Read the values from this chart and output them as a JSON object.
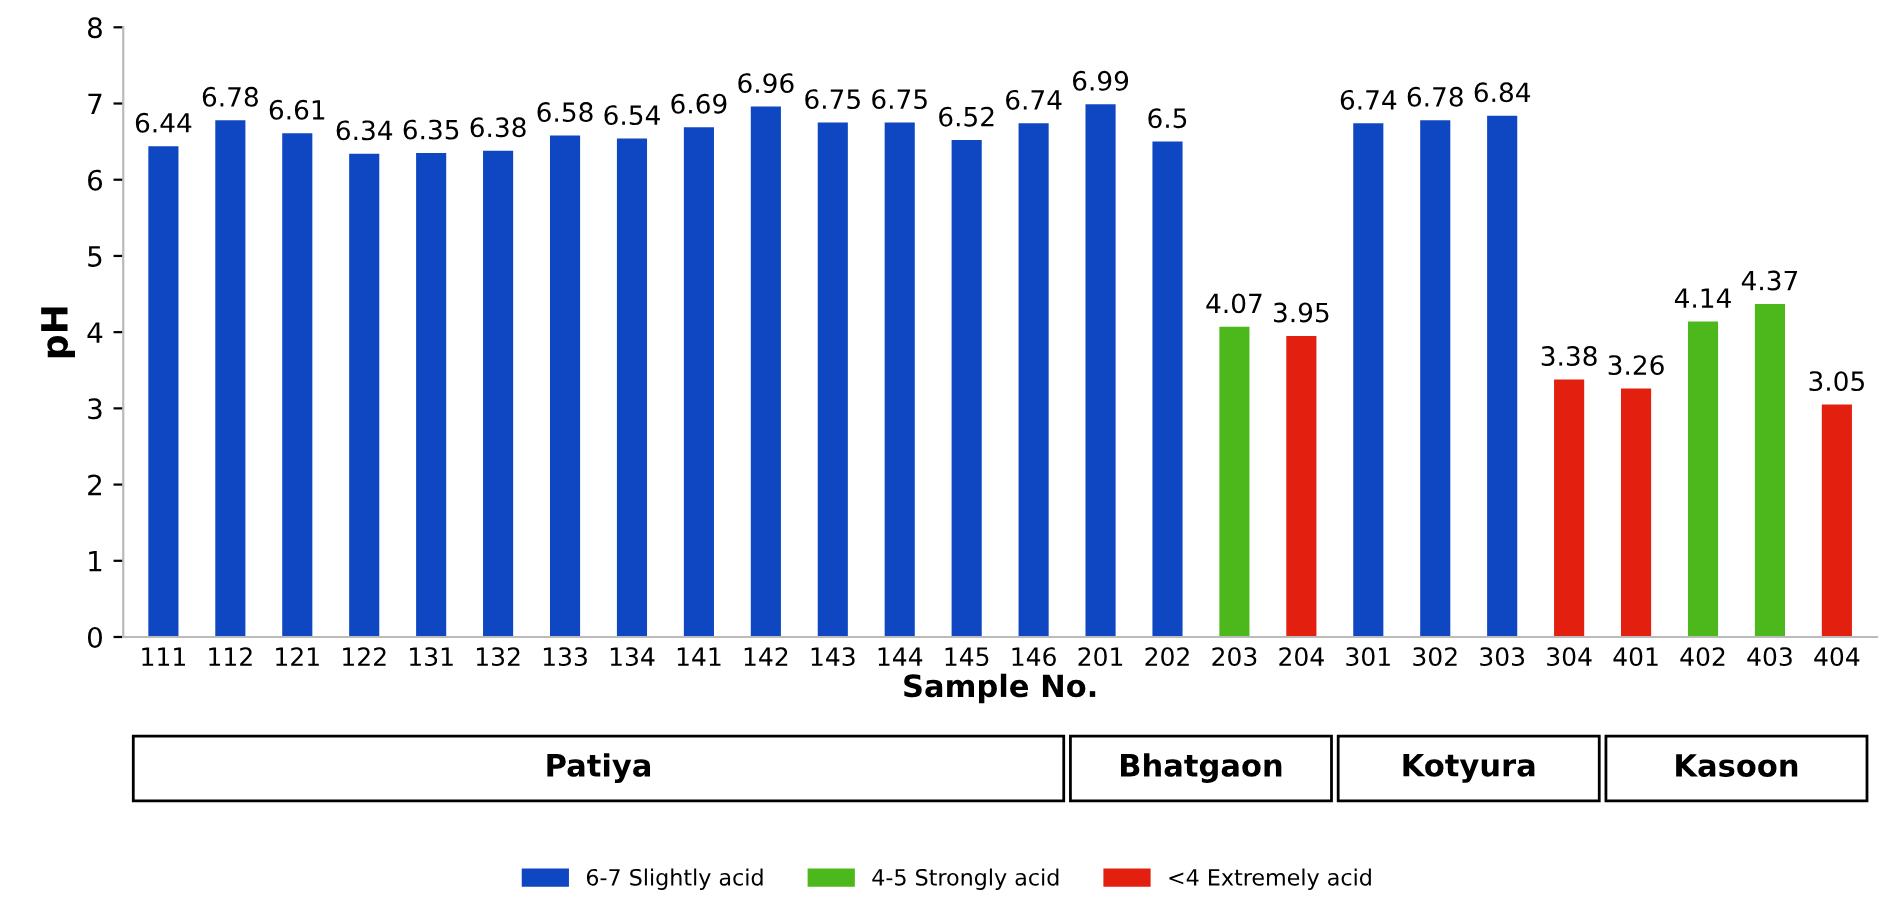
{
  "chart_data": {
    "type": "bar",
    "xlabel": "Sample No.",
    "ylabel": "pH",
    "categories": [
      "111",
      "112",
      "121",
      "122",
      "131",
      "132",
      "133",
      "134",
      "141",
      "142",
      "143",
      "144",
      "145",
      "146",
      "201",
      "202",
      "203",
      "204",
      "301",
      "302",
      "303",
      "304",
      "401",
      "402",
      "403",
      "404"
    ],
    "series": [
      {
        "name": "6-7 Slightly acid",
        "color": "#0f47c2",
        "values": [
          6.44,
          6.78,
          6.61,
          6.34,
          6.35,
          6.38,
          6.58,
          6.54,
          6.69,
          6.96,
          6.75,
          6.75,
          6.52,
          6.74,
          6.99,
          6.5,
          null,
          null,
          6.74,
          6.78,
          6.84,
          null,
          null,
          null,
          null,
          null
        ]
      },
      {
        "name": "4-5 Strongly acid",
        "color": "#4cb81c",
        "values": [
          null,
          null,
          null,
          null,
          null,
          null,
          null,
          null,
          null,
          null,
          null,
          null,
          null,
          null,
          null,
          null,
          4.07,
          null,
          null,
          null,
          null,
          null,
          null,
          4.14,
          4.37,
          null
        ]
      },
      {
        "name": "<4 Extremely acid",
        "color": "#e3200f",
        "values": [
          null,
          null,
          null,
          null,
          null,
          null,
          null,
          null,
          null,
          null,
          null,
          null,
          null,
          null,
          null,
          null,
          null,
          3.95,
          null,
          null,
          null,
          3.38,
          3.26,
          null,
          null,
          3.05
        ]
      }
    ],
    "ylim": [
      0,
      8
    ],
    "yticks": [
      0,
      1,
      2,
      3,
      4,
      5,
      6,
      7,
      8
    ],
    "grid": false,
    "data_labels": true,
    "legend": "bottom",
    "annotations": [
      "Patiya",
      "Bhatgaon",
      "Kotyura",
      "Kasoon"
    ]
  }
}
